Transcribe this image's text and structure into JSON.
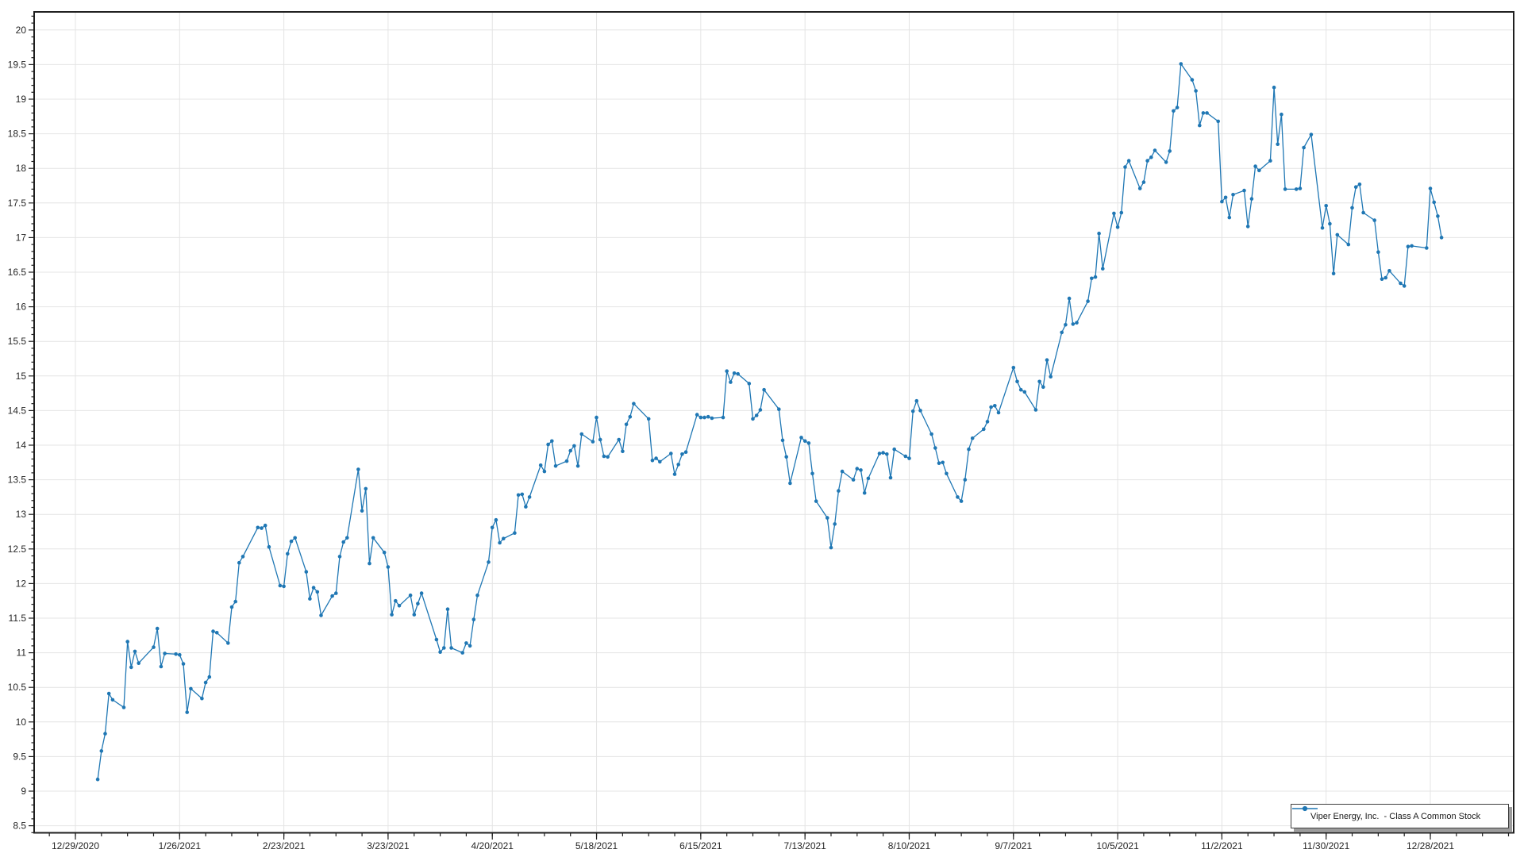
{
  "chart_data": {
    "type": "line",
    "title": "",
    "legend_position": "bottom-right",
    "grid": true,
    "series_name": "Viper Energy, Inc.  - Class A Common Stock",
    "series_color": "#1f77b4",
    "background_color": "#ffffff",
    "grid_color": "#e4e4e4",
    "axis_color": "#1f1f1f",
    "label_color": "#262626",
    "x_axis": {
      "type": "date",
      "range_start": "2020-12-18",
      "range_end": "2022-01-19",
      "minor_tick_days": 7,
      "major_ticks": [
        {
          "date": "2020-12-29",
          "label": "12/29/2020"
        },
        {
          "date": "2021-01-26",
          "label": "1/26/2021"
        },
        {
          "date": "2021-02-23",
          "label": "2/23/2021"
        },
        {
          "date": "2021-03-23",
          "label": "3/23/2021"
        },
        {
          "date": "2021-04-20",
          "label": "4/20/2021"
        },
        {
          "date": "2021-05-18",
          "label": "5/18/2021"
        },
        {
          "date": "2021-06-15",
          "label": "6/15/2021"
        },
        {
          "date": "2021-07-13",
          "label": "7/13/2021"
        },
        {
          "date": "2021-08-10",
          "label": "8/10/2021"
        },
        {
          "date": "2021-09-07",
          "label": "9/7/2021"
        },
        {
          "date": "2021-10-05",
          "label": "10/5/2021"
        },
        {
          "date": "2021-11-02",
          "label": "11/2/2021"
        },
        {
          "date": "2021-11-30",
          "label": "11/30/2021"
        },
        {
          "date": "2021-12-28",
          "label": "12/28/2021"
        }
      ]
    },
    "y_axis": {
      "min": 8.38,
      "max": 20.26,
      "major_step": 0.5,
      "minor_step": 0.1,
      "tick_labels": [
        "20",
        "19.5",
        "19",
        "18.5",
        "18",
        "17.5",
        "17",
        "16.5",
        "16",
        "15.5",
        "15",
        "14.5",
        "14",
        "13.5",
        "13",
        "12.5",
        "12",
        "11.5",
        "11",
        "10.5",
        "10",
        "9.5",
        "9",
        "8.5"
      ]
    },
    "points": [
      [
        "2021-01-04",
        9.17
      ],
      [
        "2021-01-05",
        9.58
      ],
      [
        "2021-01-06",
        9.83
      ],
      [
        "2021-01-07",
        10.41
      ],
      [
        "2021-01-08",
        10.32
      ],
      [
        "2021-01-11",
        10.21
      ],
      [
        "2021-01-12",
        11.16
      ],
      [
        "2021-01-13",
        10.79
      ],
      [
        "2021-01-14",
        11.02
      ],
      [
        "2021-01-15",
        10.85
      ],
      [
        "2021-01-19",
        11.08
      ],
      [
        "2021-01-20",
        11.35
      ],
      [
        "2021-01-21",
        10.8
      ],
      [
        "2021-01-22",
        10.99
      ],
      [
        "2021-01-25",
        10.98
      ],
      [
        "2021-01-26",
        10.97
      ],
      [
        "2021-01-27",
        10.84
      ],
      [
        "2021-01-28",
        10.14
      ],
      [
        "2021-01-29",
        10.48
      ],
      [
        "2021-02-01",
        10.34
      ],
      [
        "2021-02-02",
        10.57
      ],
      [
        "2021-02-03",
        10.65
      ],
      [
        "2021-02-04",
        11.31
      ],
      [
        "2021-02-05",
        11.29
      ],
      [
        "2021-02-08",
        11.14
      ],
      [
        "2021-02-09",
        11.66
      ],
      [
        "2021-02-10",
        11.74
      ],
      [
        "2021-02-11",
        12.3
      ],
      [
        "2021-02-12",
        12.39
      ],
      [
        "2021-02-16",
        12.81
      ],
      [
        "2021-02-17",
        12.8
      ],
      [
        "2021-02-18",
        12.84
      ],
      [
        "2021-02-19",
        12.53
      ],
      [
        "2021-02-22",
        11.97
      ],
      [
        "2021-02-23",
        11.96
      ],
      [
        "2021-02-24",
        12.43
      ],
      [
        "2021-02-25",
        12.61
      ],
      [
        "2021-02-26",
        12.66
      ],
      [
        "2021-03-01",
        12.17
      ],
      [
        "2021-03-02",
        11.78
      ],
      [
        "2021-03-03",
        11.94
      ],
      [
        "2021-03-04",
        11.88
      ],
      [
        "2021-03-05",
        11.54
      ],
      [
        "2021-03-08",
        11.82
      ],
      [
        "2021-03-09",
        11.86
      ],
      [
        "2021-03-10",
        12.39
      ],
      [
        "2021-03-11",
        12.6
      ],
      [
        "2021-03-12",
        12.66
      ],
      [
        "2021-03-15",
        13.65
      ],
      [
        "2021-03-16",
        13.05
      ],
      [
        "2021-03-17",
        13.37
      ],
      [
        "2021-03-18",
        12.29
      ],
      [
        "2021-03-19",
        12.66
      ],
      [
        "2021-03-22",
        12.45
      ],
      [
        "2021-03-23",
        12.24
      ],
      [
        "2021-03-24",
        11.55
      ],
      [
        "2021-03-25",
        11.75
      ],
      [
        "2021-03-26",
        11.68
      ],
      [
        "2021-03-29",
        11.83
      ],
      [
        "2021-03-30",
        11.55
      ],
      [
        "2021-03-31",
        11.71
      ],
      [
        "2021-04-01",
        11.86
      ],
      [
        "2021-04-05",
        11.19
      ],
      [
        "2021-04-06",
        11.01
      ],
      [
        "2021-04-07",
        11.07
      ],
      [
        "2021-04-08",
        11.63
      ],
      [
        "2021-04-09",
        11.07
      ],
      [
        "2021-04-12",
        11.0
      ],
      [
        "2021-04-13",
        11.14
      ],
      [
        "2021-04-14",
        11.1
      ],
      [
        "2021-04-15",
        11.48
      ],
      [
        "2021-04-16",
        11.83
      ],
      [
        "2021-04-19",
        12.31
      ],
      [
        "2021-04-20",
        12.81
      ],
      [
        "2021-04-21",
        12.92
      ],
      [
        "2021-04-22",
        12.59
      ],
      [
        "2021-04-23",
        12.65
      ],
      [
        "2021-04-26",
        12.73
      ],
      [
        "2021-04-27",
        13.28
      ],
      [
        "2021-04-28",
        13.29
      ],
      [
        "2021-04-29",
        13.11
      ],
      [
        "2021-04-30",
        13.25
      ],
      [
        "2021-05-03",
        13.71
      ],
      [
        "2021-05-04",
        13.62
      ],
      [
        "2021-05-05",
        14.01
      ],
      [
        "2021-05-06",
        14.06
      ],
      [
        "2021-05-07",
        13.7
      ],
      [
        "2021-05-10",
        13.77
      ],
      [
        "2021-05-11",
        13.92
      ],
      [
        "2021-05-12",
        13.99
      ],
      [
        "2021-05-13",
        13.7
      ],
      [
        "2021-05-14",
        14.16
      ],
      [
        "2021-05-17",
        14.05
      ],
      [
        "2021-05-18",
        14.4
      ],
      [
        "2021-05-19",
        14.08
      ],
      [
        "2021-05-20",
        13.84
      ],
      [
        "2021-05-21",
        13.83
      ],
      [
        "2021-05-24",
        14.08
      ],
      [
        "2021-05-25",
        13.91
      ],
      [
        "2021-05-26",
        14.3
      ],
      [
        "2021-05-27",
        14.41
      ],
      [
        "2021-05-28",
        14.6
      ],
      [
        "2021-06-01",
        14.38
      ],
      [
        "2021-06-02",
        13.78
      ],
      [
        "2021-06-03",
        13.81
      ],
      [
        "2021-06-04",
        13.76
      ],
      [
        "2021-06-07",
        13.88
      ],
      [
        "2021-06-08",
        13.58
      ],
      [
        "2021-06-09",
        13.72
      ],
      [
        "2021-06-10",
        13.87
      ],
      [
        "2021-06-11",
        13.9
      ],
      [
        "2021-06-14",
        14.44
      ],
      [
        "2021-06-15",
        14.4
      ],
      [
        "2021-06-16",
        14.4
      ],
      [
        "2021-06-17",
        14.41
      ],
      [
        "2021-06-18",
        14.39
      ],
      [
        "2021-06-21",
        14.4
      ],
      [
        "2021-06-22",
        15.07
      ],
      [
        "2021-06-23",
        14.91
      ],
      [
        "2021-06-24",
        15.04
      ],
      [
        "2021-06-25",
        15.03
      ],
      [
        "2021-06-28",
        14.89
      ],
      [
        "2021-06-29",
        14.38
      ],
      [
        "2021-06-30",
        14.43
      ],
      [
        "2021-07-01",
        14.51
      ],
      [
        "2021-07-02",
        14.8
      ],
      [
        "2021-07-06",
        14.52
      ],
      [
        "2021-07-07",
        14.07
      ],
      [
        "2021-07-08",
        13.83
      ],
      [
        "2021-07-09",
        13.45
      ],
      [
        "2021-07-12",
        14.11
      ],
      [
        "2021-07-13",
        14.06
      ],
      [
        "2021-07-14",
        14.03
      ],
      [
        "2021-07-15",
        13.59
      ],
      [
        "2021-07-16",
        13.19
      ],
      [
        "2021-07-19",
        12.95
      ],
      [
        "2021-07-20",
        12.52
      ],
      [
        "2021-07-21",
        12.86
      ],
      [
        "2021-07-22",
        13.34
      ],
      [
        "2021-07-23",
        13.62
      ],
      [
        "2021-07-26",
        13.5
      ],
      [
        "2021-07-27",
        13.66
      ],
      [
        "2021-07-28",
        13.64
      ],
      [
        "2021-07-29",
        13.31
      ],
      [
        "2021-07-30",
        13.52
      ],
      [
        "2021-08-02",
        13.88
      ],
      [
        "2021-08-03",
        13.89
      ],
      [
        "2021-08-04",
        13.87
      ],
      [
        "2021-08-05",
        13.53
      ],
      [
        "2021-08-06",
        13.94
      ],
      [
        "2021-08-09",
        13.84
      ],
      [
        "2021-08-10",
        13.81
      ],
      [
        "2021-08-11",
        14.49
      ],
      [
        "2021-08-12",
        14.64
      ],
      [
        "2021-08-13",
        14.5
      ],
      [
        "2021-08-16",
        14.16
      ],
      [
        "2021-08-17",
        13.96
      ],
      [
        "2021-08-18",
        13.74
      ],
      [
        "2021-08-19",
        13.75
      ],
      [
        "2021-08-20",
        13.59
      ],
      [
        "2021-08-23",
        13.25
      ],
      [
        "2021-08-24",
        13.19
      ],
      [
        "2021-08-25",
        13.5
      ],
      [
        "2021-08-26",
        13.94
      ],
      [
        "2021-08-27",
        14.1
      ],
      [
        "2021-08-30",
        14.23
      ],
      [
        "2021-08-31",
        14.34
      ],
      [
        "2021-09-01",
        14.55
      ],
      [
        "2021-09-02",
        14.57
      ],
      [
        "2021-09-03",
        14.47
      ],
      [
        "2021-09-07",
        15.12
      ],
      [
        "2021-09-08",
        14.92
      ],
      [
        "2021-09-09",
        14.8
      ],
      [
        "2021-09-10",
        14.77
      ],
      [
        "2021-09-13",
        14.51
      ],
      [
        "2021-09-14",
        14.92
      ],
      [
        "2021-09-15",
        14.84
      ],
      [
        "2021-09-16",
        15.23
      ],
      [
        "2021-09-17",
        14.99
      ],
      [
        "2021-09-20",
        15.63
      ],
      [
        "2021-09-21",
        15.74
      ],
      [
        "2021-09-22",
        16.12
      ],
      [
        "2021-09-23",
        15.75
      ],
      [
        "2021-09-24",
        15.77
      ],
      [
        "2021-09-27",
        16.08
      ],
      [
        "2021-09-28",
        16.41
      ],
      [
        "2021-09-29",
        16.43
      ],
      [
        "2021-09-30",
        17.06
      ],
      [
        "2021-10-01",
        16.55
      ],
      [
        "2021-10-04",
        17.35
      ],
      [
        "2021-10-05",
        17.15
      ],
      [
        "2021-10-06",
        17.36
      ],
      [
        "2021-10-07",
        18.02
      ],
      [
        "2021-10-08",
        18.11
      ],
      [
        "2021-10-11",
        17.71
      ],
      [
        "2021-10-12",
        17.8
      ],
      [
        "2021-10-13",
        18.11
      ],
      [
        "2021-10-14",
        18.16
      ],
      [
        "2021-10-15",
        18.26
      ],
      [
        "2021-10-18",
        18.09
      ],
      [
        "2021-10-19",
        18.25
      ],
      [
        "2021-10-20",
        18.83
      ],
      [
        "2021-10-21",
        18.88
      ],
      [
        "2021-10-22",
        19.51
      ],
      [
        "2021-10-25",
        19.28
      ],
      [
        "2021-10-26",
        19.12
      ],
      [
        "2021-10-27",
        18.62
      ],
      [
        "2021-10-28",
        18.8
      ],
      [
        "2021-10-29",
        18.8
      ],
      [
        "2021-11-01",
        18.68
      ],
      [
        "2021-11-02",
        17.52
      ],
      [
        "2021-11-03",
        17.58
      ],
      [
        "2021-11-04",
        17.29
      ],
      [
        "2021-11-05",
        17.62
      ],
      [
        "2021-11-08",
        17.68
      ],
      [
        "2021-11-09",
        17.16
      ],
      [
        "2021-11-10",
        17.56
      ],
      [
        "2021-11-11",
        18.03
      ],
      [
        "2021-11-12",
        17.97
      ],
      [
        "2021-11-15",
        18.11
      ],
      [
        "2021-11-16",
        19.17
      ],
      [
        "2021-11-17",
        18.35
      ],
      [
        "2021-11-18",
        18.78
      ],
      [
        "2021-11-19",
        17.7
      ],
      [
        "2021-11-22",
        17.7
      ],
      [
        "2021-11-23",
        17.71
      ],
      [
        "2021-11-24",
        18.3
      ],
      [
        "2021-11-26",
        18.49
      ],
      [
        "2021-11-29",
        17.14
      ],
      [
        "2021-11-30",
        17.46
      ],
      [
        "2021-12-01",
        17.2
      ],
      [
        "2021-12-02",
        16.48
      ],
      [
        "2021-12-03",
        17.04
      ],
      [
        "2021-12-06",
        16.9
      ],
      [
        "2021-12-07",
        17.43
      ],
      [
        "2021-12-08",
        17.73
      ],
      [
        "2021-12-09",
        17.77
      ],
      [
        "2021-12-10",
        17.36
      ],
      [
        "2021-12-13",
        17.25
      ],
      [
        "2021-12-14",
        16.79
      ],
      [
        "2021-12-15",
        16.4
      ],
      [
        "2021-12-16",
        16.42
      ],
      [
        "2021-12-17",
        16.52
      ],
      [
        "2021-12-20",
        16.34
      ],
      [
        "2021-12-21",
        16.3
      ],
      [
        "2021-12-22",
        16.87
      ],
      [
        "2021-12-23",
        16.88
      ],
      [
        "2021-12-27",
        16.85
      ],
      [
        "2021-12-28",
        17.71
      ],
      [
        "2021-12-29",
        17.51
      ],
      [
        "2021-12-30",
        17.31
      ],
      [
        "2021-12-31",
        17.0
      ]
    ]
  },
  "legend": {
    "label": "Viper Energy, Inc.  - Class A Common Stock"
  }
}
